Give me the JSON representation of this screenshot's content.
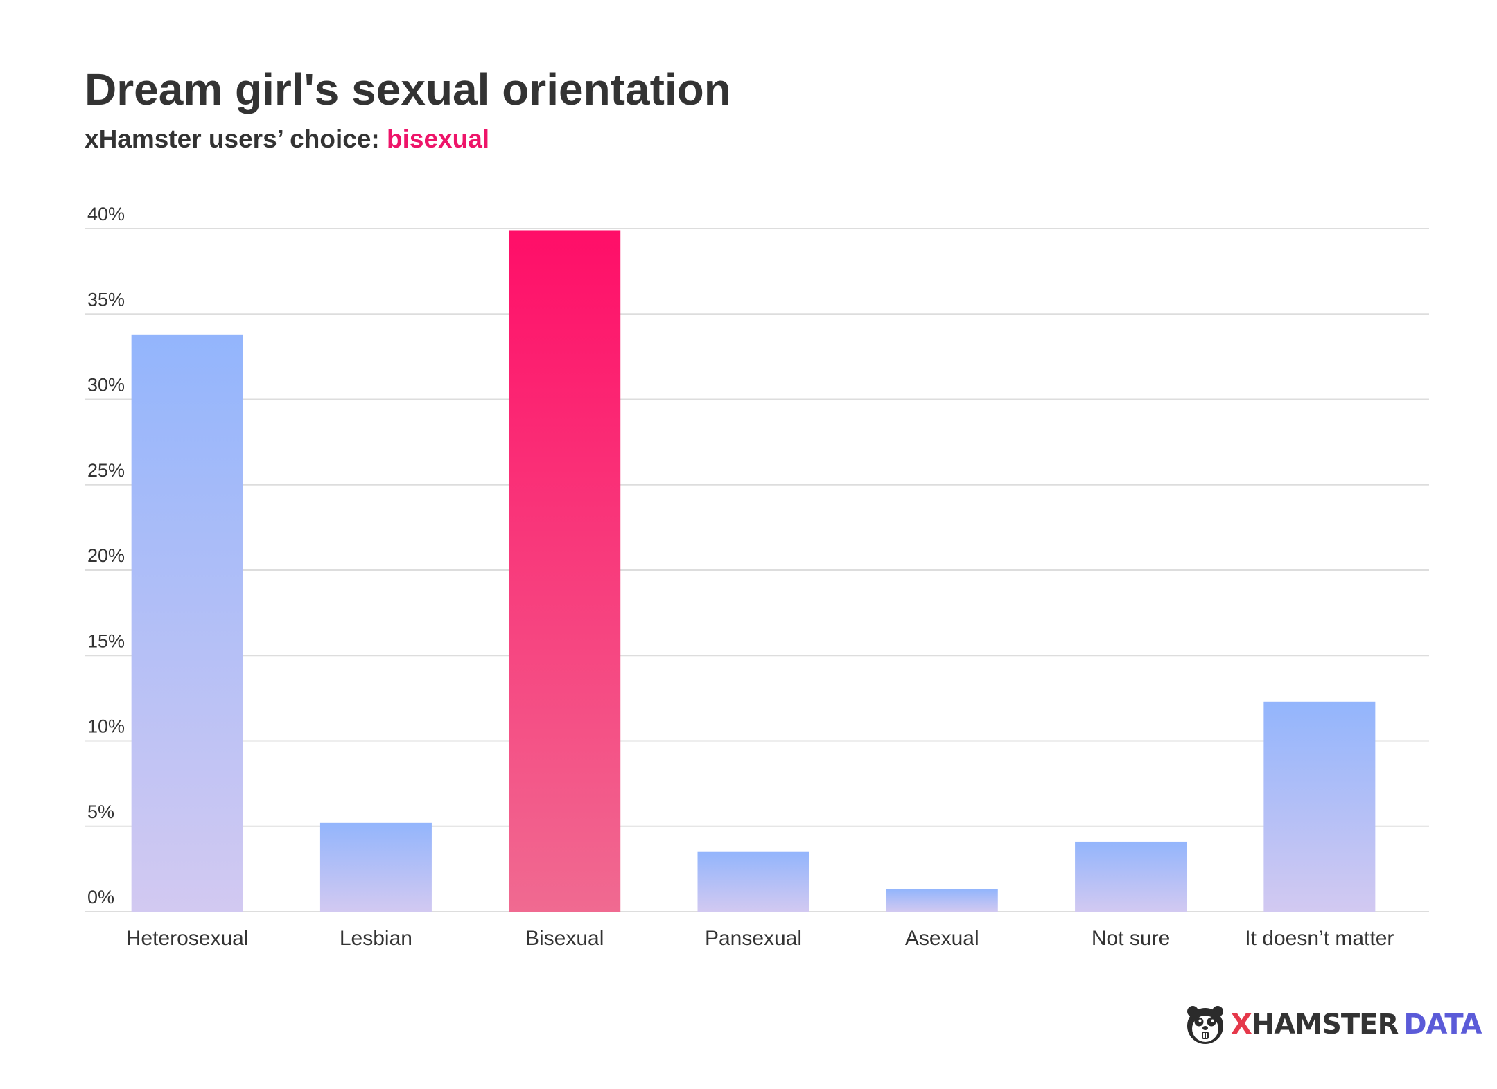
{
  "title": "Dream girl's sexual orientation",
  "subtitle": {
    "prefix": "xHamster users’ choice: ",
    "highlight": "bisexual"
  },
  "logo": {
    "x_letter": "X",
    "name": "HAMSTER",
    "suffix": "DATA",
    "icon": "hamster-icon"
  },
  "colors": {
    "accent": "#ee1469",
    "bar_top": "#93b5fc",
    "bar_bottom": "#d2c9f1",
    "highlight_top": "#ff0e68",
    "highlight_bottom": "#f06a91",
    "grid": "#dddddd",
    "text": "#333333"
  },
  "chart_data": {
    "type": "bar",
    "title": "Dream girl's sexual orientation",
    "subtitle": "xHamster users’ choice: bisexual",
    "categories": [
      "Heterosexual",
      "Lesbian",
      "Bisexual",
      "Pansexual",
      "Asexual",
      "Not sure",
      "It doesn’t matter"
    ],
    "values": [
      33.8,
      5.2,
      39.9,
      3.5,
      1.3,
      4.1,
      12.3
    ],
    "highlighted_category": "Bisexual",
    "unit": "%",
    "ylim": [
      0,
      40
    ],
    "yticks": [
      0,
      5,
      10,
      15,
      20,
      25,
      30,
      35,
      40
    ],
    "ytick_labels": [
      "0%",
      "5%",
      "10%",
      "15%",
      "20%",
      "25%",
      "30%",
      "35%",
      "40%"
    ],
    "grid": true,
    "legend": "none"
  }
}
